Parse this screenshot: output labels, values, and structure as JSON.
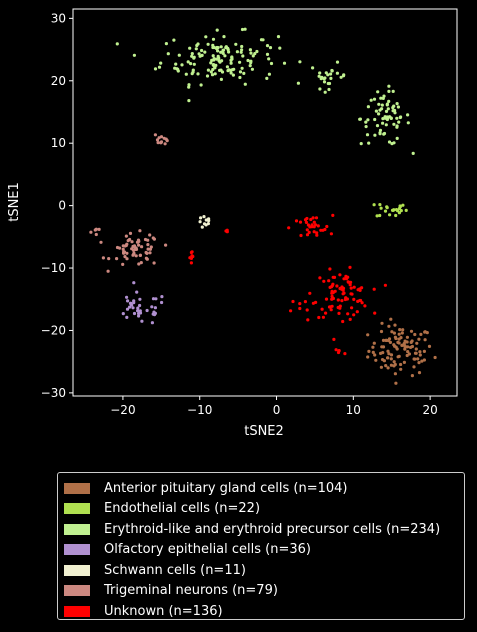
{
  "chart_data": {
    "type": "scatter",
    "title": "",
    "xlabel": "tSNE2",
    "ylabel": "tSNE1",
    "xlim": [
      -26.5,
      23.5
    ],
    "ylim": [
      -30.5,
      31.5
    ],
    "xticks": [
      -20,
      -10,
      0,
      10,
      20
    ],
    "yticks": [
      -30,
      -20,
      -10,
      0,
      10,
      20,
      30
    ],
    "grid": false,
    "legend_placement": "below",
    "series": [
      {
        "name": "Anterior pituitary gland cells (n=104)",
        "color": "#b07048",
        "n": 104,
        "clusters": [
          {
            "cx": 16.2,
            "cy": -23.2,
            "sx": 2.1,
            "sy": 2.0,
            "n": 104
          }
        ]
      },
      {
        "name": "Endothelial cells (n=22)",
        "color": "#b0e050",
        "n": 22,
        "clusters": [
          {
            "cx": 15.0,
            "cy": -0.6,
            "sx": 1.0,
            "sy": 0.7,
            "n": 22
          }
        ]
      },
      {
        "name": "Erythroid-like and erythroid precursor cells (n=234)",
        "color": "#c0f090",
        "n": 234,
        "clusters": [
          {
            "cx": -7.5,
            "cy": 23.6,
            "sx": 3.8,
            "sy": 2.0,
            "n": 140
          },
          {
            "cx": 6.8,
            "cy": 20.8,
            "sx": 1.2,
            "sy": 1.0,
            "n": 24
          },
          {
            "cx": 14.2,
            "cy": 14.0,
            "sx": 1.6,
            "sy": 2.2,
            "n": 70
          }
        ]
      },
      {
        "name": "Olfactory epithelial cells (n=36)",
        "color": "#b090d0",
        "n": 36,
        "clusters": [
          {
            "cx": -17.8,
            "cy": -16.6,
            "sx": 1.8,
            "sy": 1.3,
            "n": 36
          }
        ]
      },
      {
        "name": "Schwann cells (n=11)",
        "color": "#f0f0d0",
        "n": 11,
        "clusters": [
          {
            "cx": -9.2,
            "cy": -2.7,
            "sx": 0.5,
            "sy": 0.5,
            "n": 11
          }
        ]
      },
      {
        "name": "Trigeminal neurons (n=79)",
        "color": "#cc8880",
        "n": 79,
        "clusters": [
          {
            "cx": -18.3,
            "cy": -7.2,
            "sx": 1.6,
            "sy": 1.3,
            "n": 62
          },
          {
            "cx": -15.0,
            "cy": 10.8,
            "sx": 0.5,
            "sy": 0.5,
            "n": 12
          },
          {
            "cx": -23.5,
            "cy": -4.2,
            "sx": 0.3,
            "sy": 0.3,
            "n": 5
          }
        ]
      },
      {
        "name": "Unknown (n=136)",
        "color": "#ff0000",
        "n": 136,
        "clusters": [
          {
            "cx": 8.5,
            "cy": -14.2,
            "sx": 1.8,
            "sy": 1.8,
            "n": 82
          },
          {
            "cx": 4.5,
            "cy": -3.6,
            "sx": 1.4,
            "sy": 1.0,
            "n": 30
          },
          {
            "cx": 3.5,
            "cy": -16.5,
            "sx": 0.8,
            "sy": 1.0,
            "n": 8
          },
          {
            "cx": -11.0,
            "cy": -8.3,
            "sx": 0.3,
            "sy": 0.9,
            "n": 8
          },
          {
            "cx": 8.2,
            "cy": -23.5,
            "sx": 0.4,
            "sy": 0.5,
            "n": 5
          },
          {
            "cx": -6.5,
            "cy": -4.0,
            "sx": 0.3,
            "sy": 0.3,
            "n": 3
          }
        ]
      }
    ]
  }
}
